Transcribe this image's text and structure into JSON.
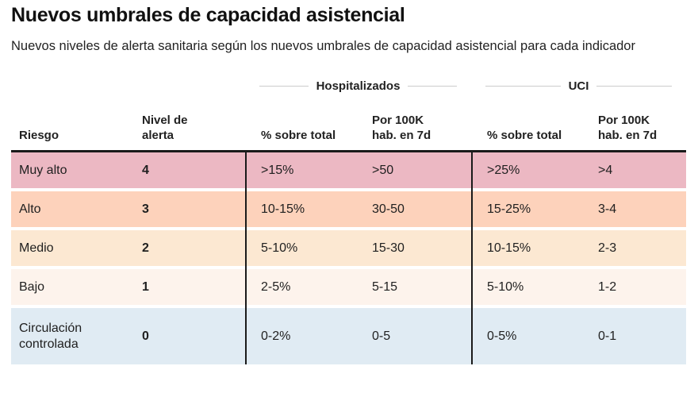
{
  "header": {
    "title": "Nuevos umbrales de capacidad asistencial",
    "subtitle": "Nuevos niveles de alerta sanitaria según los nuevos umbrales de capacidad asistencial para cada indicador"
  },
  "chart_data": {
    "type": "table",
    "title": "Nuevos umbrales de capacidad asistencial",
    "subtitle": "Nuevos niveles de alerta sanitaria según los nuevos umbrales de capacidad asistencial para cada indicador",
    "group_columns": [
      {
        "label": "Hospitalizados",
        "spans": [
          "% sobre total",
          "Por 100K hab. en 7d"
        ]
      },
      {
        "label": "UCI",
        "spans": [
          "% sobre total",
          "Por 100K hab. en 7d"
        ]
      }
    ],
    "columns": [
      "Riesgo",
      "Nivel de alerta",
      "% sobre total",
      "Por 100K hab. en 7d",
      "% sobre total",
      "Por 100K hab. en 7d"
    ],
    "rows": [
      {
        "riesgo": "Muy alto",
        "nivel_alerta": "4",
        "hosp_pct_total": ">15%",
        "hosp_por_100k": ">50",
        "uci_pct_total": ">25%",
        "uci_por_100k": ">4",
        "row_color": "#ecb8c3"
      },
      {
        "riesgo": "Alto",
        "nivel_alerta": "3",
        "hosp_pct_total": "10-15%",
        "hosp_por_100k": "30-50",
        "uci_pct_total": "15-25%",
        "uci_por_100k": "3-4",
        "row_color": "#fdd2bb"
      },
      {
        "riesgo": "Medio",
        "nivel_alerta": "2",
        "hosp_pct_total": "5-10%",
        "hosp_por_100k": "15-30",
        "uci_pct_total": "10-15%",
        "uci_por_100k": "2-3",
        "row_color": "#fce8d2"
      },
      {
        "riesgo": "Bajo",
        "nivel_alerta": "1",
        "hosp_pct_total": "2-5%",
        "hosp_por_100k": "5-15",
        "uci_pct_total": "5-10%",
        "uci_por_100k": "1-2",
        "row_color": "#fdf3ec"
      },
      {
        "riesgo": "Circulación controlada",
        "nivel_alerta": "0",
        "hosp_pct_total": "0-2%",
        "hosp_por_100k": "0-5",
        "uci_pct_total": "0-5%",
        "uci_por_100k": "0-1",
        "row_color": "#e0ebf3"
      }
    ],
    "colors": {
      "header_rule": "#1a1a1a",
      "column_divider": "#1a1a1a",
      "group_line": "#cccccc",
      "text": "#1f1f1f"
    },
    "layout": {
      "grid": "off",
      "row_gap_color": "#ffffff"
    }
  }
}
